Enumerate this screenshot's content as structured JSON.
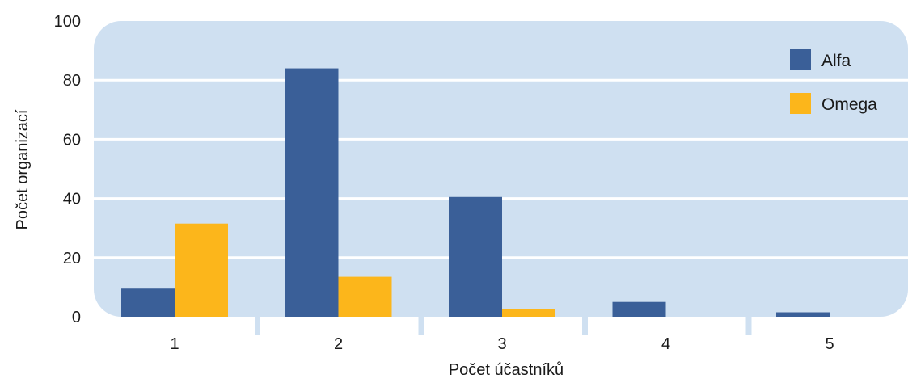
{
  "chart_data": {
    "type": "bar",
    "title": "",
    "xlabel": "Počet účastníků",
    "ylabel": "Počet organizací",
    "categories": [
      "1",
      "2",
      "3",
      "4",
      "5"
    ],
    "series": [
      {
        "name": "Alfa",
        "values": [
          9.5,
          84,
          40.5,
          5,
          1.5
        ]
      },
      {
        "name": "Omega",
        "values": [
          31.5,
          13.5,
          2.5,
          0,
          0
        ]
      }
    ],
    "ylim": [
      0,
      100
    ],
    "yticks": [
      "0",
      "20",
      "40",
      "60",
      "80",
      "100"
    ],
    "grid": true,
    "legend_position": "top-right",
    "colors": {
      "plot_background": "#cfe0f1",
      "gridline": "#ffffff",
      "series": [
        "#3a5f98",
        "#fcb61b"
      ]
    }
  }
}
